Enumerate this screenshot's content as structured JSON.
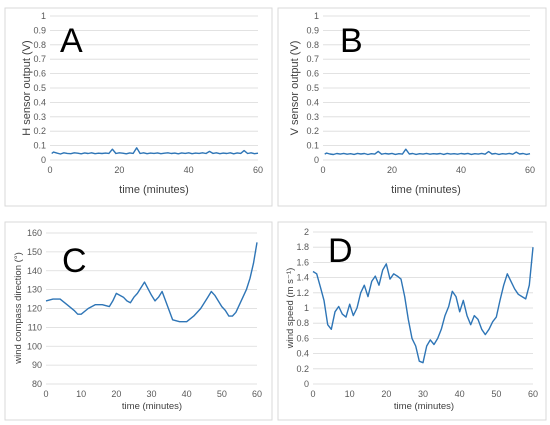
{
  "chart_data": [
    {
      "type": "line",
      "panel": "A",
      "xlabel": "time (minutes)",
      "ylabel": "H sensor output (V)",
      "xlim": [
        0,
        60
      ],
      "ylim": [
        0,
        1
      ],
      "xticks": [
        "0",
        "20",
        "40",
        "60"
      ],
      "yticks": [
        "0",
        "0.1",
        "0.2",
        "0.3",
        "0.4",
        "0.5",
        "0.6",
        "0.7",
        "0.8",
        "0.9",
        "1"
      ],
      "color": "#2e75b6",
      "grid": "horizontal",
      "x": [
        0.5,
        1,
        2,
        3,
        4,
        5,
        6,
        7,
        8,
        9,
        10,
        11,
        12,
        13,
        14,
        15,
        16,
        17,
        18,
        19,
        20,
        21,
        22,
        23,
        24,
        25,
        26,
        27,
        28,
        29,
        30,
        31,
        32,
        33,
        34,
        35,
        36,
        37,
        38,
        39,
        40,
        41,
        42,
        43,
        44,
        45,
        46,
        47,
        48,
        49,
        50,
        51,
        52,
        53,
        54,
        55,
        56,
        57,
        58,
        59,
        60
      ],
      "y": [
        0.045,
        0.055,
        0.048,
        0.042,
        0.05,
        0.046,
        0.044,
        0.05,
        0.047,
        0.043,
        0.049,
        0.045,
        0.05,
        0.044,
        0.047,
        0.045,
        0.048,
        0.046,
        0.075,
        0.045,
        0.05,
        0.047,
        0.043,
        0.049,
        0.046,
        0.085,
        0.045,
        0.05,
        0.044,
        0.048,
        0.046,
        0.049,
        0.044,
        0.047,
        0.05,
        0.045,
        0.048,
        0.043,
        0.049,
        0.046,
        0.05,
        0.044,
        0.048,
        0.046,
        0.05,
        0.045,
        0.06,
        0.046,
        0.05,
        0.044,
        0.048,
        0.045,
        0.05,
        0.043,
        0.049,
        0.046,
        0.065,
        0.045,
        0.05,
        0.044,
        0.047
      ]
    },
    {
      "type": "line",
      "panel": "B",
      "xlabel": "time (minutes)",
      "ylabel": "V sensor output (V)",
      "xlim": [
        0,
        60
      ],
      "ylim": [
        0,
        1
      ],
      "xticks": [
        "0",
        "20",
        "40",
        "60"
      ],
      "yticks": [
        "0",
        "0.1",
        "0.2",
        "0.3",
        "0.4",
        "0.5",
        "0.6",
        "0.7",
        "0.8",
        "0.9",
        "1"
      ],
      "color": "#2e75b6",
      "grid": "horizontal",
      "x": [
        0.5,
        1,
        2,
        3,
        4,
        5,
        6,
        7,
        8,
        9,
        10,
        11,
        12,
        13,
        14,
        15,
        16,
        17,
        18,
        19,
        20,
        21,
        22,
        23,
        24,
        25,
        26,
        27,
        28,
        29,
        30,
        31,
        32,
        33,
        34,
        35,
        36,
        37,
        38,
        39,
        40,
        41,
        42,
        43,
        44,
        45,
        46,
        47,
        48,
        49,
        50,
        51,
        52,
        53,
        54,
        55,
        56,
        57,
        58,
        59,
        60
      ],
      "y": [
        0.04,
        0.048,
        0.042,
        0.038,
        0.045,
        0.041,
        0.046,
        0.04,
        0.044,
        0.039,
        0.046,
        0.042,
        0.045,
        0.038,
        0.044,
        0.041,
        0.06,
        0.04,
        0.045,
        0.042,
        0.046,
        0.039,
        0.044,
        0.041,
        0.075,
        0.042,
        0.045,
        0.039,
        0.044,
        0.041,
        0.046,
        0.04,
        0.044,
        0.042,
        0.045,
        0.039,
        0.046,
        0.041,
        0.044,
        0.04,
        0.045,
        0.042,
        0.046,
        0.039,
        0.044,
        0.041,
        0.046,
        0.04,
        0.058,
        0.042,
        0.045,
        0.039,
        0.044,
        0.041,
        0.046,
        0.04,
        0.055,
        0.042,
        0.045,
        0.039,
        0.044
      ]
    },
    {
      "type": "line",
      "panel": "C",
      "xlabel": "time (minutes)",
      "ylabel": "wind compass direction (°)",
      "xlim": [
        0,
        60
      ],
      "ylim": [
        80,
        160
      ],
      "xticks": [
        "0",
        "10",
        "20",
        "30",
        "40",
        "50",
        "60"
      ],
      "yticks": [
        "80",
        "90",
        "100",
        "110",
        "120",
        "130",
        "140",
        "150",
        "160"
      ],
      "color": "#2e75b6",
      "grid": "horizontal",
      "x": [
        0,
        2,
        4,
        6,
        8,
        9,
        10,
        12,
        14,
        16,
        18,
        19,
        20,
        22,
        23,
        24,
        25,
        26,
        28,
        30,
        31,
        32,
        33,
        34,
        36,
        38,
        40,
        42,
        44,
        46,
        47,
        48,
        50,
        51,
        52,
        53,
        54,
        56,
        57,
        58,
        59,
        60
      ],
      "y": [
        124,
        125,
        125,
        122,
        119,
        117,
        117,
        120,
        122,
        122,
        121,
        124,
        128,
        126,
        124,
        123,
        126,
        128,
        134,
        127,
        124,
        126,
        129,
        124,
        114,
        113,
        113,
        116,
        120,
        126,
        129,
        127,
        121,
        119,
        116,
        116,
        118,
        126,
        130,
        136,
        144,
        155
      ]
    },
    {
      "type": "line",
      "panel": "D",
      "xlabel": "time (minutes)",
      "ylabel": "wind speed (m s⁻¹)",
      "xlim": [
        0,
        60
      ],
      "ylim": [
        0,
        2
      ],
      "xticks": [
        "0",
        "10",
        "20",
        "30",
        "40",
        "50",
        "60"
      ],
      "yticks": [
        "0",
        "0.2",
        "0.4",
        "0.6",
        "0.8",
        "1",
        "1.2",
        "1.4",
        "1.6",
        "1.8",
        "2"
      ],
      "color": "#2e75b6",
      "grid": "horizontal",
      "x": [
        0,
        1,
        2,
        3,
        4,
        5,
        6,
        7,
        8,
        9,
        10,
        11,
        12,
        13,
        14,
        15,
        16,
        17,
        18,
        19,
        20,
        21,
        22,
        23,
        24,
        25,
        26,
        27,
        28,
        29,
        30,
        31,
        32,
        33,
        34,
        35,
        36,
        37,
        38,
        39,
        40,
        41,
        42,
        43,
        44,
        45,
        46,
        47,
        48,
        49,
        50,
        51,
        52,
        53,
        54,
        55,
        56,
        57,
        58,
        59,
        60
      ],
      "y": [
        1.48,
        1.45,
        1.28,
        1.1,
        0.78,
        0.72,
        0.95,
        1.02,
        0.92,
        0.88,
        1.05,
        0.9,
        1.0,
        1.2,
        1.3,
        1.15,
        1.35,
        1.42,
        1.3,
        1.5,
        1.58,
        1.38,
        1.45,
        1.42,
        1.38,
        1.15,
        0.85,
        0.6,
        0.5,
        0.3,
        0.28,
        0.5,
        0.58,
        0.52,
        0.6,
        0.72,
        0.9,
        1.02,
        1.22,
        1.15,
        0.95,
        1.1,
        0.9,
        0.78,
        0.9,
        0.85,
        0.72,
        0.65,
        0.72,
        0.82,
        0.88,
        1.1,
        1.3,
        1.45,
        1.35,
        1.25,
        1.18,
        1.15,
        1.12,
        1.3,
        1.8
      ]
    }
  ]
}
